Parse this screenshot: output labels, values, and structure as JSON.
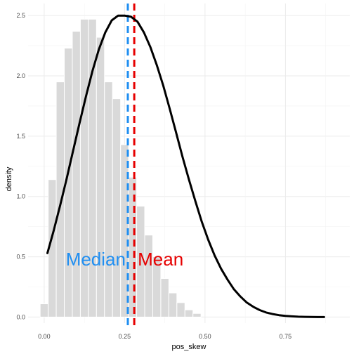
{
  "chart_data": {
    "type": "histogram",
    "xlabel": "pos_skew",
    "ylabel": "density",
    "xlim": [
      -0.05,
      0.95
    ],
    "ylim": [
      -0.05,
      2.6
    ],
    "x_ticks": [
      0.0,
      0.25,
      0.5,
      0.75
    ],
    "x_tick_labels": [
      "0.00",
      "0.25",
      "0.50",
      "0.75"
    ],
    "y_ticks": [
      0.0,
      0.5,
      1.0,
      1.5,
      2.0,
      2.5
    ],
    "y_tick_labels": [
      "0.0",
      "0.5",
      "1.0",
      "1.5",
      "2.0",
      "2.5"
    ],
    "grid": true,
    "bins": {
      "start": -0.0125,
      "width": 0.025,
      "values": [
        0.11,
        1.14,
        1.95,
        2.23,
        2.37,
        2.47,
        2.47,
        2.32,
        1.95,
        1.81,
        1.43,
        1.16,
        0.92,
        0.68,
        0.5,
        0.32,
        0.2,
        0.12,
        0.06,
        0.03
      ]
    },
    "density_curve": {
      "x": [
        0.01,
        0.03,
        0.05,
        0.07,
        0.09,
        0.11,
        0.13,
        0.15,
        0.17,
        0.19,
        0.21,
        0.23,
        0.25,
        0.27,
        0.29,
        0.31,
        0.33,
        0.35,
        0.37,
        0.39,
        0.41,
        0.43,
        0.45,
        0.47,
        0.49,
        0.51,
        0.53,
        0.55,
        0.57,
        0.59,
        0.61,
        0.63,
        0.65,
        0.67,
        0.69,
        0.71,
        0.73,
        0.75,
        0.77,
        0.79,
        0.81,
        0.83,
        0.85,
        0.87
      ],
      "y": [
        0.53,
        0.72,
        0.93,
        1.15,
        1.38,
        1.61,
        1.83,
        2.04,
        2.22,
        2.36,
        2.46,
        2.5,
        2.5,
        2.49,
        2.45,
        2.36,
        2.24,
        2.09,
        1.92,
        1.73,
        1.53,
        1.33,
        1.14,
        0.96,
        0.79,
        0.64,
        0.51,
        0.4,
        0.31,
        0.23,
        0.17,
        0.12,
        0.085,
        0.058,
        0.038,
        0.025,
        0.016,
        0.01,
        0.006,
        0.003,
        0.002,
        0.001,
        0.0,
        0.0
      ]
    },
    "vlines": [
      {
        "name": "Median",
        "x": 0.26,
        "color": "#1f8ef1"
      },
      {
        "name": "Mean",
        "x": 0.28,
        "color": "#e60000"
      }
    ],
    "annotations": [
      {
        "text": "Median",
        "x": 0.26,
        "y": 0.48,
        "anchor": "end",
        "color": "#1f8ef1"
      },
      {
        "text": "Mean",
        "x": 0.28,
        "y": 0.48,
        "anchor": "start",
        "color": "#e60000"
      }
    ]
  }
}
